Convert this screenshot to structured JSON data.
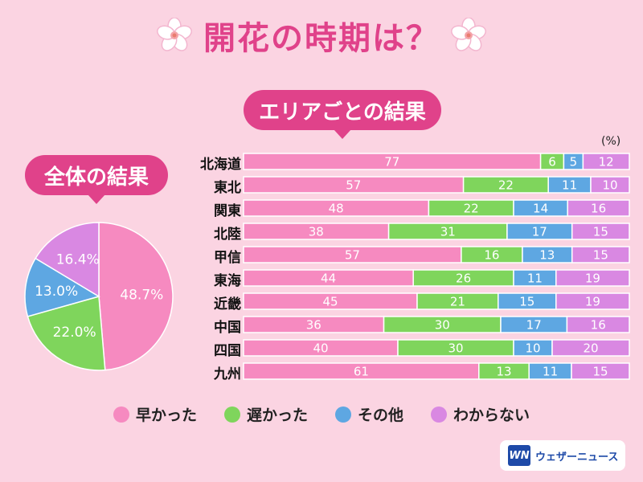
{
  "title": "開花の時期は？",
  "area_label": "エリアごとの結果",
  "overall_label": "全体の結果",
  "unit": "(%)",
  "colors": {
    "early": "#f68ac0",
    "late": "#7fd55c",
    "other": "#5ea7e2",
    "unknown": "#d988e2",
    "accent": "#e0428a"
  },
  "legend": [
    {
      "label": "早かった",
      "color": "#f68ac0"
    },
    {
      "label": "遅かった",
      "color": "#7fd55c"
    },
    {
      "label": "その他",
      "color": "#5ea7e2"
    },
    {
      "label": "わからない",
      "color": "#d988e2"
    }
  ],
  "logo": {
    "mark": "WN",
    "text": "ウェザーニュース"
  },
  "chart_data": [
    {
      "type": "pie",
      "title": "全体の結果",
      "slices": [
        {
          "label": "早かった",
          "value": 48.7,
          "display": "48.7%"
        },
        {
          "label": "遅かった",
          "value": 22.0,
          "display": "22.0%"
        },
        {
          "label": "その他",
          "value": 13.0,
          "display": "13.0%"
        },
        {
          "label": "わからない",
          "value": 16.4,
          "display": "16.4%"
        }
      ]
    },
    {
      "type": "bar",
      "orientation": "horizontal-stacked-100",
      "title": "エリアごとの結果",
      "unit": "(%)",
      "categories": [
        "北海道",
        "東北",
        "関東",
        "北陸",
        "甲信",
        "東海",
        "近畿",
        "中国",
        "四国",
        "九州"
      ],
      "series": [
        {
          "name": "早かった",
          "values": [
            77,
            57,
            48,
            38,
            57,
            44,
            45,
            36,
            40,
            61
          ]
        },
        {
          "name": "遅かった",
          "values": [
            6,
            22,
            22,
            31,
            16,
            26,
            21,
            30,
            30,
            13
          ]
        },
        {
          "name": "その他",
          "values": [
            5,
            11,
            14,
            17,
            13,
            11,
            15,
            17,
            10,
            11
          ]
        },
        {
          "name": "わからない",
          "values": [
            12,
            10,
            16,
            15,
            15,
            19,
            19,
            16,
            20,
            15
          ]
        }
      ]
    }
  ]
}
